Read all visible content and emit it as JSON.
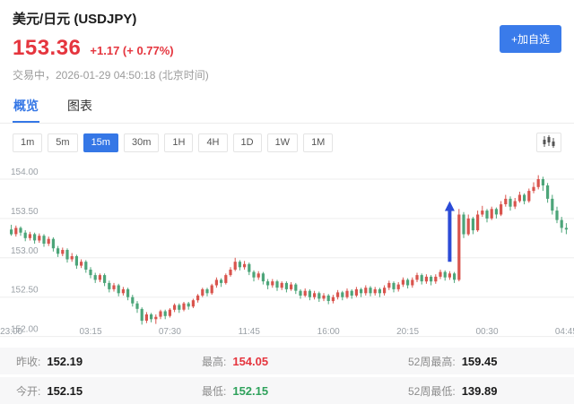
{
  "header": {
    "title": "美元/日元 (USDJPY)",
    "price": "153.36",
    "change": "+1.17 (+ 0.77%)",
    "status": "交易中，2026-01-29 04:50:18 (北京时间)",
    "watchlist_button": "+加自选"
  },
  "tabs": [
    {
      "label": "概览",
      "active": true
    },
    {
      "label": "图表",
      "active": false
    }
  ],
  "timeframes": {
    "options": [
      "1m",
      "5m",
      "15m",
      "30m",
      "1H",
      "4H",
      "1D",
      "1W",
      "1M"
    ],
    "active": "15m"
  },
  "chart_data": {
    "type": "candlestick",
    "interval": "15m",
    "symbol": "USDJPY",
    "y_ticks": [
      "154.00",
      "153.50",
      "153.00",
      "152.50",
      "152.00"
    ],
    "x_ticks": [
      "23:00",
      "03:15",
      "07:30",
      "11:45",
      "16:00",
      "20:15",
      "00:30",
      "04:45"
    ],
    "x_tick_indices": [
      0,
      17,
      34,
      51,
      68,
      85,
      102,
      119
    ],
    "ylim": [
      151.95,
      154.25
    ],
    "candles": [
      [
        153.36,
        153.42,
        153.28,
        153.3
      ],
      [
        153.3,
        153.41,
        153.27,
        153.38
      ],
      [
        153.38,
        153.4,
        153.28,
        153.32
      ],
      [
        153.32,
        153.35,
        153.21,
        153.25
      ],
      [
        153.25,
        153.33,
        153.22,
        153.3
      ],
      [
        153.3,
        153.32,
        153.18,
        153.22
      ],
      [
        153.22,
        153.31,
        153.19,
        153.28
      ],
      [
        153.28,
        153.3,
        153.14,
        153.18
      ],
      [
        153.18,
        153.27,
        153.15,
        153.24
      ],
      [
        153.24,
        153.26,
        153.08,
        153.12
      ],
      [
        153.12,
        153.15,
        153.01,
        153.05
      ],
      [
        153.05,
        153.13,
        153.02,
        153.1
      ],
      [
        153.1,
        153.12,
        152.94,
        152.98
      ],
      [
        152.98,
        153.06,
        152.95,
        153.02
      ],
      [
        153.02,
        153.04,
        152.86,
        152.9
      ],
      [
        152.9,
        152.98,
        152.87,
        152.95
      ],
      [
        152.95,
        152.97,
        152.81,
        152.85
      ],
      [
        152.85,
        152.88,
        152.74,
        152.78
      ],
      [
        152.78,
        152.81,
        152.68,
        152.72
      ],
      [
        152.72,
        152.8,
        152.69,
        152.78
      ],
      [
        152.78,
        152.8,
        152.64,
        152.68
      ],
      [
        152.68,
        152.71,
        152.56,
        152.6
      ],
      [
        152.6,
        152.68,
        152.57,
        152.65
      ],
      [
        152.65,
        152.67,
        152.51,
        152.55
      ],
      [
        152.55,
        152.63,
        152.52,
        152.6
      ],
      [
        152.6,
        152.62,
        152.46,
        152.5
      ],
      [
        152.5,
        152.53,
        152.38,
        152.42
      ],
      [
        152.42,
        152.45,
        152.3,
        152.35
      ],
      [
        152.35,
        152.37,
        152.15,
        152.2
      ],
      [
        152.2,
        152.31,
        152.17,
        152.28
      ],
      [
        152.28,
        152.3,
        152.18,
        152.22
      ],
      [
        152.22,
        152.28,
        152.16,
        152.25
      ],
      [
        152.25,
        152.34,
        152.22,
        152.32
      ],
      [
        152.32,
        152.34,
        152.22,
        152.26
      ],
      [
        152.26,
        152.36,
        152.24,
        152.34
      ],
      [
        152.34,
        152.42,
        152.31,
        152.4
      ],
      [
        152.4,
        152.42,
        152.3,
        152.34
      ],
      [
        152.34,
        152.44,
        152.32,
        152.42
      ],
      [
        152.42,
        152.44,
        152.34,
        152.38
      ],
      [
        152.38,
        152.48,
        152.36,
        152.46
      ],
      [
        152.46,
        152.54,
        152.43,
        152.52
      ],
      [
        152.52,
        152.62,
        152.5,
        152.6
      ],
      [
        152.6,
        152.62,
        152.51,
        152.55
      ],
      [
        152.55,
        152.67,
        152.53,
        152.65
      ],
      [
        152.65,
        152.75,
        152.62,
        152.72
      ],
      [
        152.72,
        152.74,
        152.63,
        152.68
      ],
      [
        152.68,
        152.8,
        152.66,
        152.78
      ],
      [
        152.78,
        152.88,
        152.76,
        152.85
      ],
      [
        152.85,
        153.0,
        152.83,
        152.95
      ],
      [
        152.95,
        152.97,
        152.84,
        152.88
      ],
      [
        152.88,
        152.96,
        152.85,
        152.92
      ],
      [
        152.92,
        152.94,
        152.78,
        152.82
      ],
      [
        152.82,
        152.84,
        152.7,
        152.75
      ],
      [
        152.75,
        152.83,
        152.72,
        152.8
      ],
      [
        152.8,
        152.82,
        152.66,
        152.7
      ],
      [
        152.7,
        152.73,
        152.6,
        152.65
      ],
      [
        152.65,
        152.73,
        152.62,
        152.7
      ],
      [
        152.7,
        152.72,
        152.58,
        152.62
      ],
      [
        152.62,
        152.7,
        152.59,
        152.68
      ],
      [
        152.68,
        152.7,
        152.56,
        152.6
      ],
      [
        152.6,
        152.69,
        152.58,
        152.66
      ],
      [
        152.66,
        152.68,
        152.54,
        152.58
      ],
      [
        152.58,
        152.6,
        152.48,
        152.52
      ],
      [
        152.52,
        152.61,
        152.5,
        152.58
      ],
      [
        152.58,
        152.6,
        152.46,
        152.5
      ],
      [
        152.5,
        152.58,
        152.47,
        152.55
      ],
      [
        152.55,
        152.57,
        152.44,
        152.48
      ],
      [
        152.48,
        152.55,
        152.45,
        152.52
      ],
      [
        152.52,
        152.54,
        152.41,
        152.45
      ],
      [
        152.45,
        152.53,
        152.42,
        152.5
      ],
      [
        152.5,
        152.59,
        152.47,
        152.56
      ],
      [
        152.56,
        152.58,
        152.46,
        152.5
      ],
      [
        152.5,
        152.61,
        152.48,
        152.58
      ],
      [
        152.58,
        152.6,
        152.48,
        152.52
      ],
      [
        152.52,
        152.63,
        152.5,
        152.6
      ],
      [
        152.6,
        152.62,
        152.5,
        152.55
      ],
      [
        152.55,
        152.65,
        152.52,
        152.62
      ],
      [
        152.62,
        152.64,
        152.51,
        152.55
      ],
      [
        152.55,
        152.63,
        152.52,
        152.6
      ],
      [
        152.6,
        152.62,
        152.5,
        152.55
      ],
      [
        152.55,
        152.65,
        152.52,
        152.62
      ],
      [
        152.62,
        152.71,
        152.59,
        152.68
      ],
      [
        152.68,
        152.7,
        152.56,
        152.6
      ],
      [
        152.6,
        152.69,
        152.57,
        152.66
      ],
      [
        152.66,
        152.75,
        152.63,
        152.72
      ],
      [
        152.72,
        152.74,
        152.61,
        152.65
      ],
      [
        152.65,
        152.75,
        152.62,
        152.72
      ],
      [
        152.72,
        152.81,
        152.69,
        152.78
      ],
      [
        152.78,
        152.8,
        152.66,
        152.7
      ],
      [
        152.7,
        152.79,
        152.67,
        152.76
      ],
      [
        152.76,
        152.78,
        152.65,
        152.7
      ],
      [
        152.7,
        152.79,
        152.67,
        152.76
      ],
      [
        152.76,
        152.85,
        152.73,
        152.82
      ],
      [
        152.82,
        152.84,
        152.71,
        152.75
      ],
      [
        152.75,
        152.83,
        152.72,
        152.8
      ],
      [
        152.8,
        152.82,
        152.68,
        152.72
      ],
      [
        152.72,
        153.62,
        152.7,
        153.55
      ],
      [
        153.55,
        153.58,
        153.25,
        153.3
      ],
      [
        153.3,
        153.55,
        153.28,
        153.5
      ],
      [
        153.5,
        153.52,
        153.3,
        153.35
      ],
      [
        153.35,
        153.6,
        153.33,
        153.55
      ],
      [
        153.55,
        153.66,
        153.52,
        153.6
      ],
      [
        153.6,
        153.62,
        153.45,
        153.5
      ],
      [
        153.5,
        153.65,
        153.48,
        153.62
      ],
      [
        153.62,
        153.64,
        153.5,
        153.55
      ],
      [
        153.55,
        153.72,
        153.53,
        153.68
      ],
      [
        153.68,
        153.8,
        153.65,
        153.75
      ],
      [
        153.75,
        153.78,
        153.6,
        153.65
      ],
      [
        153.65,
        153.76,
        153.62,
        153.72
      ],
      [
        153.72,
        153.84,
        153.7,
        153.8
      ],
      [
        153.8,
        153.82,
        153.68,
        153.72
      ],
      [
        153.72,
        153.88,
        153.7,
        153.85
      ],
      [
        153.85,
        153.96,
        153.82,
        153.9
      ],
      [
        153.9,
        154.05,
        153.87,
        154.0
      ],
      [
        154.0,
        154.03,
        153.85,
        153.92
      ],
      [
        153.92,
        153.95,
        153.7,
        153.75
      ],
      [
        153.75,
        153.8,
        153.55,
        153.6
      ],
      [
        153.6,
        153.65,
        153.44,
        153.48
      ],
      [
        153.48,
        153.52,
        153.32,
        153.38
      ],
      [
        153.38,
        153.44,
        153.3,
        153.36
      ]
    ],
    "annotation": {
      "type": "up-arrow",
      "index": 94,
      "price_from": 152.95,
      "price_to": 153.72,
      "color": "#2b4bd7"
    }
  },
  "stats": {
    "rows": [
      [
        {
          "label": "昨收:",
          "value": "152.19",
          "color": "default"
        },
        {
          "label": "最高:",
          "value": "154.05",
          "color": "red"
        },
        {
          "label": "52周最高:",
          "value": "159.45",
          "color": "default"
        }
      ],
      [
        {
          "label": "今开:",
          "value": "152.15",
          "color": "default"
        },
        {
          "label": "最低:",
          "value": "152.15",
          "color": "green"
        },
        {
          "label": "52周最低:",
          "value": "139.89",
          "color": "default"
        }
      ]
    ]
  },
  "colors": {
    "up_candle": "#d9544d",
    "down_candle": "#4ca579",
    "accent_blue": "#3577e6",
    "price_red": "#e5353e",
    "value_green": "#2fa25c",
    "grid": "#ededed",
    "axis_text": "#9aa0a6"
  }
}
